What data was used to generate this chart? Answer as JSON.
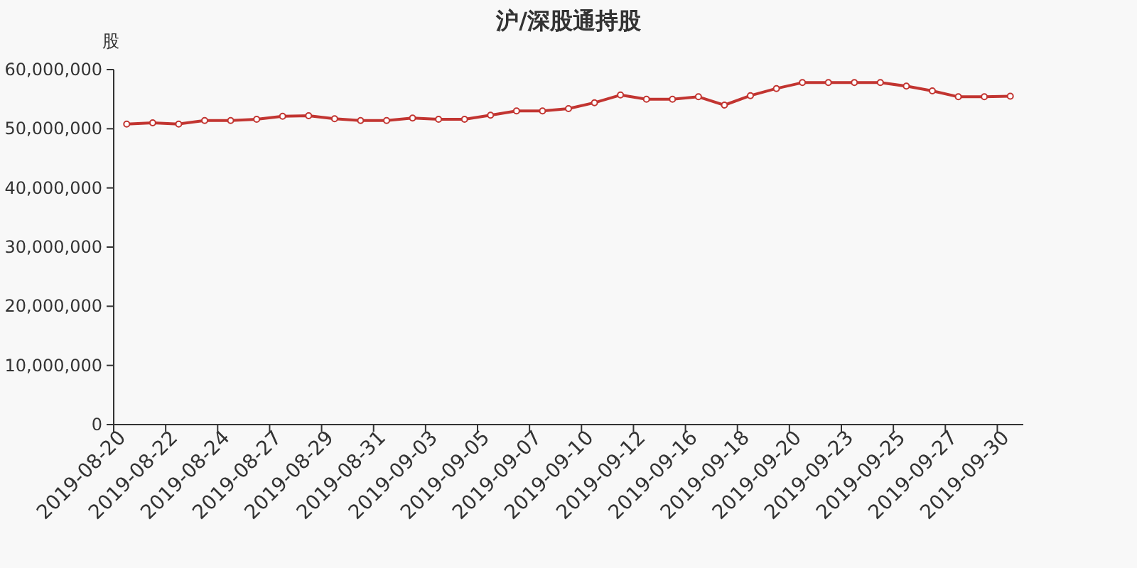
{
  "chart_data": {
    "type": "line",
    "title": "沪/深股通持股",
    "ylabel": "股",
    "categories": [
      "2019-08-20",
      null,
      "2019-08-22",
      null,
      "2019-08-24",
      null,
      "2019-08-27",
      null,
      "2019-08-29",
      null,
      "2019-08-31",
      null,
      "2019-09-03",
      null,
      "2019-09-05",
      null,
      "2019-09-07",
      null,
      "2019-09-10",
      null,
      "2019-09-12",
      null,
      "2019-09-16",
      null,
      "2019-09-18",
      null,
      "2019-09-20",
      null,
      "2019-09-23",
      null,
      "2019-09-25",
      null,
      "2019-09-27",
      null,
      "2019-09-30"
    ],
    "series": [
      {
        "color": "#c23531",
        "values": [
          50800000,
          51000000,
          50800000,
          51400000,
          51400000,
          51600000,
          52100000,
          52200000,
          51700000,
          51400000,
          51400000,
          51800000,
          51600000,
          51600000,
          52300000,
          53000000,
          53000000,
          53400000,
          54400000,
          55700000,
          55000000,
          55000000,
          55400000,
          54000000,
          55600000,
          56800000,
          57800000,
          57800000,
          57800000,
          57800000,
          57200000,
          56400000,
          55400000,
          55400000,
          55500000
        ]
      }
    ],
    "ylim": [
      0,
      60000000
    ],
    "yticks": [
      {
        "value": 0,
        "label": "0"
      },
      {
        "value": 10000000,
        "label": "10,000,000"
      },
      {
        "value": 20000000,
        "label": "20,000,000"
      },
      {
        "value": 30000000,
        "label": "30,000,000"
      },
      {
        "value": 40000000,
        "label": "40,000,000"
      },
      {
        "value": 50000000,
        "label": "50,000,000"
      },
      {
        "value": 60000000,
        "label": "60,000,000"
      }
    ],
    "marker": "circle"
  }
}
